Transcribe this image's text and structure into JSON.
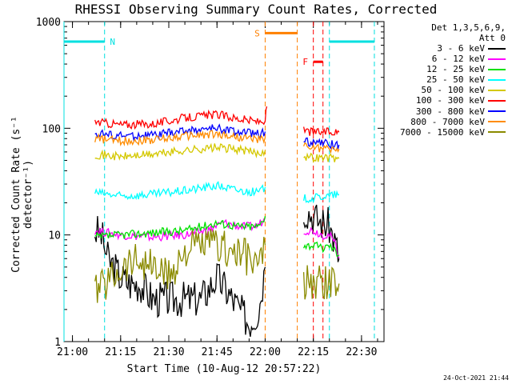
{
  "chart_data": {
    "type": "line",
    "title": "RHESSI Observing Summary Count Rates, Corrected",
    "xlabel": "Start Time (10-Aug-12 20:57:22)",
    "ylabel": "Corrected Count Rate (s⁻¹ detector⁻¹)",
    "y_scale": "log",
    "ylim": [
      1,
      1000
    ],
    "xlim": [
      "20:57:22",
      "22:37:00"
    ],
    "x_ticks": [
      "21:00",
      "21:15",
      "21:30",
      "21:45",
      "22:00",
      "22:15",
      "22:30"
    ],
    "y_ticks": [
      "1",
      "10",
      "100",
      "1000"
    ],
    "legend_header": [
      "Det 1,3,5,6,9,",
      "Att 0"
    ],
    "series": [
      {
        "name": "3 - 6 keV",
        "color": "#000000",
        "segments": [
          {
            "t": [
              "21:07",
              "21:09",
              "21:11",
              "21:13",
              "21:15",
              "21:18",
              "21:21",
              "21:25",
              "21:30",
              "21:35",
              "21:40",
              "21:45",
              "21:48",
              "21:52",
              "21:55",
              "21:58",
              "22:00"
            ],
            "v": [
              11,
              10,
              6,
              5,
              4,
              3.5,
              3.5,
              2.5,
              2.5,
              2.5,
              2.5,
              4,
              3,
              2,
              1.5,
              2,
              5
            ]
          },
          {
            "t": [
              "22:12",
              "22:14",
              "22:16",
              "22:18",
              "22:20",
              "22:22",
              "22:23"
            ],
            "v": [
              18,
              16,
              14,
              13,
              12,
              8,
              6
            ]
          }
        ]
      },
      {
        "name": "6 - 12 keV",
        "color": "#ff00ff",
        "segments": [
          {
            "t": [
              "21:07",
              "21:15",
              "21:25",
              "21:35",
              "21:42",
              "21:47",
              "21:52",
              "21:57",
              "22:00"
            ],
            "v": [
              11,
              10,
              9.5,
              10,
              11,
              13,
              12,
              12,
              14
            ]
          },
          {
            "t": [
              "22:12",
              "22:15",
              "22:18",
              "22:20",
              "22:22",
              "22:23"
            ],
            "v": [
              11,
              11,
              10,
              10,
              8,
              6
            ]
          }
        ]
      },
      {
        "name": "12 - 25 keV",
        "color": "#00e000",
        "segments": [
          {
            "t": [
              "21:07",
              "21:15",
              "21:25",
              "21:35",
              "21:45",
              "21:52",
              "21:58",
              "22:00"
            ],
            "v": [
              9.5,
              10,
              10.5,
              11,
              13,
              12,
              12,
              15
            ]
          },
          {
            "t": [
              "22:12",
              "22:15",
              "22:18",
              "22:20",
              "22:22",
              "22:23"
            ],
            "v": [
              8,
              8,
              7.5,
              8,
              7,
              6.5
            ]
          }
        ]
      },
      {
        "name": "25 - 50 keV",
        "color": "#00ffff",
        "segments": [
          {
            "t": [
              "21:07",
              "21:15",
              "21:25",
              "21:35",
              "21:45",
              "21:52",
              "21:58",
              "22:00"
            ],
            "v": [
              25,
              23,
              24,
              26,
              29,
              26,
              25,
              28
            ]
          },
          {
            "t": [
              "22:12",
              "22:15",
              "22:18",
              "22:20",
              "22:22",
              "22:23"
            ],
            "v": [
              22,
              22,
              23,
              23,
              24,
              24
            ]
          }
        ]
      },
      {
        "name": "50 - 100 keV",
        "color": "#d4c800",
        "segments": [
          {
            "t": [
              "21:07",
              "21:15",
              "21:25",
              "21:35",
              "21:45",
              "21:52",
              "21:58",
              "22:00"
            ],
            "v": [
              57,
              54,
              57,
              62,
              66,
              63,
              58,
              62
            ]
          },
          {
            "t": [
              "22:12",
              "22:15",
              "22:18",
              "22:20",
              "22:22",
              "22:23"
            ],
            "v": [
              55,
              53,
              53,
              53,
              52,
              52
            ]
          }
        ]
      },
      {
        "name": "100 - 300 keV",
        "color": "#ff0000",
        "segments": [
          {
            "t": [
              "21:07",
              "21:15",
              "21:25",
              "21:35",
              "21:45",
              "21:52",
              "21:58",
              "22:00",
              "22:00.5"
            ],
            "v": [
              115,
              108,
              110,
              125,
              135,
              122,
              115,
              120,
              160
            ]
          },
          {
            "t": [
              "22:12",
              "22:15",
              "22:18",
              "22:20",
              "22:22",
              "22:23"
            ],
            "v": [
              95,
              92,
              92,
              92,
              92,
              92
            ]
          }
        ]
      },
      {
        "name": "300 - 800 keV",
        "color": "#0000ff",
        "segments": [
          {
            "t": [
              "21:07",
              "21:15",
              "21:25",
              "21:35",
              "21:45",
              "21:52",
              "21:58",
              "22:00"
            ],
            "v": [
              90,
              85,
              86,
              95,
              100,
              92,
              88,
              93
            ]
          },
          {
            "t": [
              "22:12",
              "22:15",
              "22:18",
              "22:20",
              "22:22",
              "22:23"
            ],
            "v": [
              76,
              73,
              72,
              71,
              70,
              70
            ]
          }
        ]
      },
      {
        "name": "800 - 7000 keV",
        "color": "#ff8c00",
        "segments": [
          {
            "t": [
              "21:07",
              "21:15",
              "21:25",
              "21:35",
              "21:45",
              "21:52",
              "21:58",
              "22:00"
            ],
            "v": [
              80,
              76,
              78,
              85,
              88,
              82,
              78,
              82
            ]
          },
          {
            "t": [
              "22:12",
              "22:15",
              "22:18",
              "22:20",
              "22:22",
              "22:23"
            ],
            "v": [
              68,
              66,
              65,
              64,
              64,
              64
            ]
          }
        ]
      },
      {
        "name": "7000 - 15000 keV",
        "color": "#8b8b00",
        "segments": [
          {
            "t": [
              "21:07",
              "21:10",
              "21:15",
              "21:20",
              "21:25",
              "21:30",
              "21:35",
              "21:40",
              "21:45",
              "21:50",
              "21:55",
              "21:58",
              "22:00"
            ],
            "v": [
              3,
              3.5,
              5,
              6,
              5,
              4,
              7,
              8,
              8,
              7,
              6,
              5,
              8
            ]
          },
          {
            "t": [
              "22:12",
              "22:15",
              "22:18",
              "22:20",
              "22:22",
              "22:23"
            ],
            "v": [
              3.5,
              3.5,
              3.5,
              3.5,
              3.5,
              3.5
            ]
          }
        ]
      }
    ],
    "flags": [
      {
        "label": "N",
        "color": "#00e0e0",
        "spans": [
          [
            "20:57:22",
            "21:10"
          ],
          [
            "22:20",
            "22:34"
          ]
        ]
      },
      {
        "label": "S",
        "color": "#ff8000",
        "spans": [
          [
            "22:00",
            "22:10"
          ]
        ]
      },
      {
        "label": "F",
        "color": "#ff0000",
        "spans": [
          [
            "22:15",
            "22:18"
          ]
        ]
      }
    ]
  },
  "legend": {
    "header_line1": "Det 1,3,5,6,9,",
    "header_line2": "Att 0",
    "entries": [
      {
        "label": "3 - 6 keV",
        "color": "#000000"
      },
      {
        "label": "6 - 12 keV",
        "color": "#ff00ff"
      },
      {
        "label": "12 - 25 keV",
        "color": "#00e000"
      },
      {
        "label": "25 - 50 keV",
        "color": "#00ffff"
      },
      {
        "label": "50 - 100 keV",
        "color": "#d4c800"
      },
      {
        "label": "100 - 300 keV",
        "color": "#ff0000"
      },
      {
        "label": "300 - 800 keV",
        "color": "#0000ff"
      },
      {
        "label": "800 - 7000 keV",
        "color": "#ff8c00"
      },
      {
        "label": "7000 - 15000 keV",
        "color": "#8b8b00"
      }
    ]
  },
  "timestamp": "24-Oct-2021 21:44"
}
